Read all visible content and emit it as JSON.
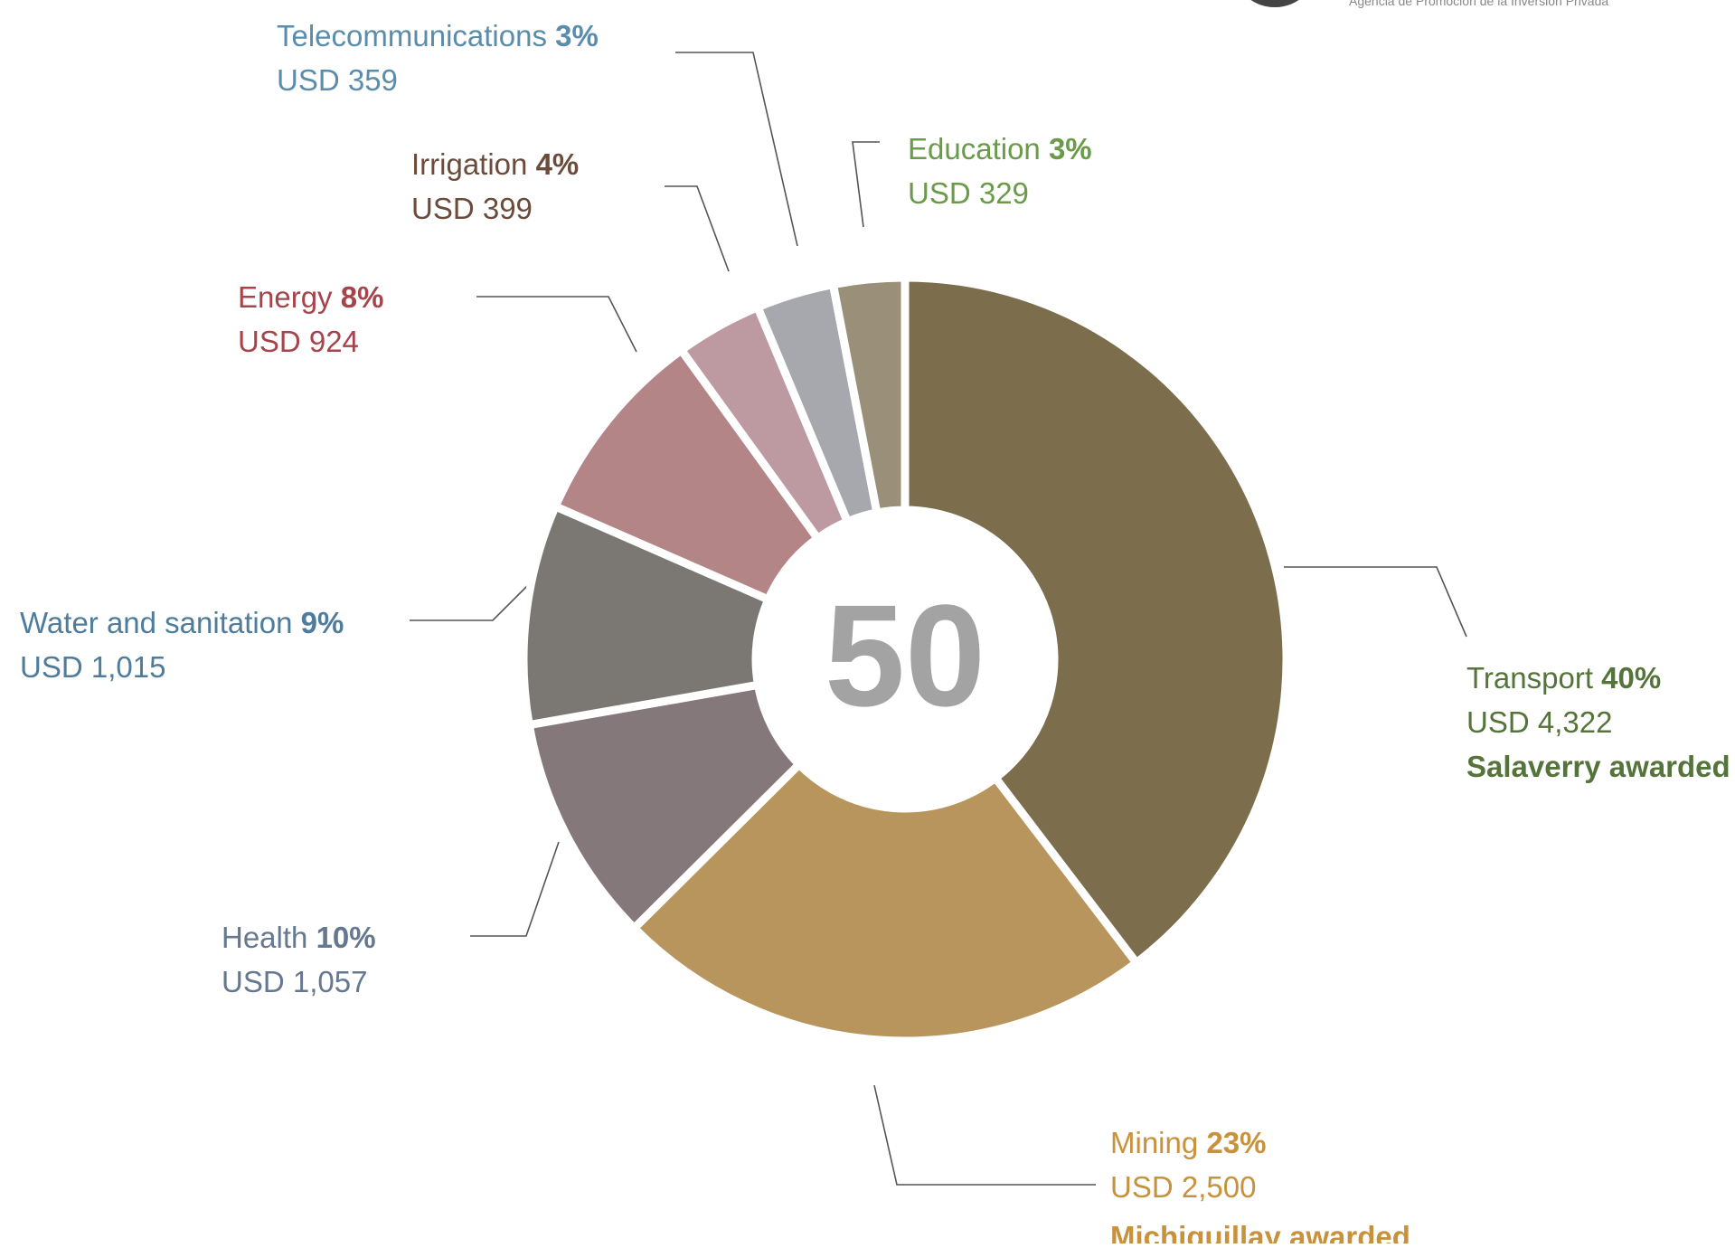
{
  "header": "Agencia de Promoción de la Inversión Privada",
  "chart_data": {
    "type": "donut",
    "center_label": "50",
    "categories": [
      "Transport",
      "Mining",
      "Health",
      "Water and sanitation",
      "Energy",
      "Irrigation",
      "Telecommunications",
      "Education"
    ],
    "values": [
      4322,
      2500,
      1057,
      1015,
      924,
      399,
      359,
      329
    ],
    "value_labels": [
      "USD 4,322",
      "USD 2,500",
      "USD 1,057",
      "USD 1,015",
      "USD 924",
      "USD 399",
      "USD 359",
      "USD 329"
    ],
    "percents": [
      40,
      23,
      10,
      9,
      8,
      4,
      3,
      3
    ],
    "percent_labels": [
      "40%",
      "23%",
      "10%",
      "9%",
      "8%",
      "4%",
      "3%",
      "3%"
    ],
    "annotations": [
      "Salaverry awarded",
      "Michiquillay awarded",
      null,
      null,
      null,
      null,
      null,
      null
    ],
    "colors": [
      "#7c6d4c",
      "#b8955c",
      "#85787a",
      "#7b7874",
      "#b38586",
      "#bd9aa2",
      "#a6a8ad",
      "#9a9079"
    ],
    "label_colors": [
      "#55743a",
      "#c8913c",
      "#667790",
      "#4e7c9c",
      "#a6444c",
      "#6b4b3b",
      "#5a8cab",
      "#6a9a4a"
    ]
  }
}
